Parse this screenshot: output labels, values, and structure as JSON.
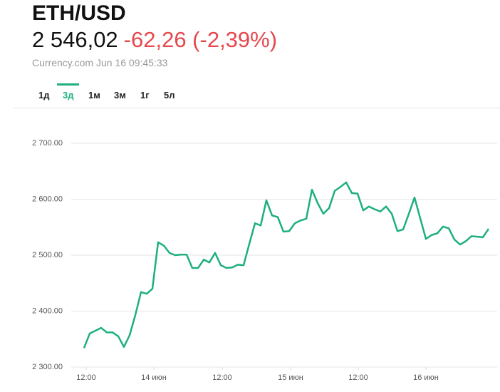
{
  "header": {
    "title": "ETH/USD",
    "price": "2 546,02",
    "change": "-62,26 (-2,39%)",
    "source": "Currency.com Jun 16 09:45:33"
  },
  "tabs": [
    "1д",
    "3д",
    "1м",
    "3м",
    "1г",
    "5л"
  ],
  "active_tab": 1,
  "chart_data": {
    "type": "line",
    "color": "#1db07c",
    "grid": true,
    "values": [
      2334,
      2360,
      2365,
      2370,
      2362,
      2362,
      2355,
      2336,
      2357,
      2393,
      2434,
      2431,
      2440,
      2523,
      2517,
      2504,
      2500,
      2501,
      2501,
      2477,
      2477,
      2492,
      2487,
      2504,
      2482,
      2477,
      2478,
      2483,
      2482,
      2520,
      2557,
      2553,
      2598,
      2571,
      2568,
      2542,
      2543,
      2557,
      2562,
      2565,
      2617,
      2593,
      2574,
      2584,
      2615,
      2622,
      2630,
      2611,
      2610,
      2580,
      2587,
      2582,
      2578,
      2587,
      2574,
      2543,
      2546,
      2574,
      2603,
      2566,
      2529,
      2536,
      2539,
      2551,
      2548,
      2528,
      2519,
      2525,
      2534,
      2533,
      2532,
      2547
    ],
    "ylim": [
      2300,
      2700
    ],
    "yticks": [
      {
        "value": 2300,
        "label": "2 300.00"
      },
      {
        "value": 2400,
        "label": "2 400.00"
      },
      {
        "value": 2500,
        "label": "2 500.00"
      },
      {
        "value": 2600,
        "label": "2 600.00"
      },
      {
        "value": 2700,
        "label": "2 700.00"
      }
    ],
    "xlim": [
      0,
      71
    ],
    "xticks": [
      {
        "value": 0.375,
        "label": "12:00"
      },
      {
        "value": 12.25,
        "label": "14 июн"
      },
      {
        "value": 24.25,
        "label": "12:00"
      },
      {
        "value": 36.25,
        "label": "15 июн"
      },
      {
        "value": 48.125,
        "label": "12:00"
      },
      {
        "value": 60,
        "label": "16 июн"
      }
    ]
  }
}
